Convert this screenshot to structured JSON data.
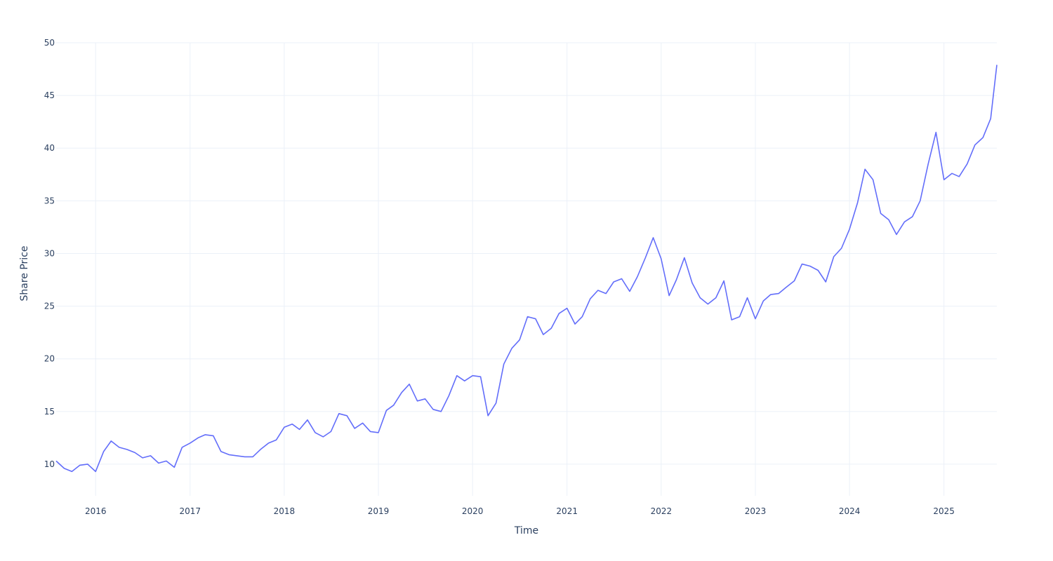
{
  "chart_data": {
    "type": "line",
    "title": "",
    "xlabel": "Time",
    "ylabel": "Share Price",
    "ylim": [
      7,
      50
    ],
    "xlim": [
      "2015-08-01",
      "2025-07-25"
    ],
    "y_ticks": [
      10,
      15,
      20,
      25,
      30,
      35,
      40,
      45,
      50
    ],
    "x_ticks": [
      "2016",
      "2017",
      "2018",
      "2019",
      "2020",
      "2021",
      "2022",
      "2023",
      "2024",
      "2025"
    ],
    "grid": true,
    "line_color": "#636efa",
    "series": [
      {
        "x": [
          "2015-08-01",
          "2015-09-01",
          "2015-10-01",
          "2015-11-01",
          "2015-12-01",
          "2016-01-01",
          "2016-02-01",
          "2016-03-01",
          "2016-04-01",
          "2016-05-01",
          "2016-06-01",
          "2016-07-01",
          "2016-08-01",
          "2016-09-01",
          "2016-10-01",
          "2016-11-01",
          "2016-12-01",
          "2017-01-01",
          "2017-02-01",
          "2017-03-01",
          "2017-04-01",
          "2017-05-01",
          "2017-06-01",
          "2017-07-01",
          "2017-08-01",
          "2017-09-01",
          "2017-10-01",
          "2017-11-01",
          "2017-12-01",
          "2018-01-01",
          "2018-02-01",
          "2018-03-01",
          "2018-04-01",
          "2018-05-01",
          "2018-06-01",
          "2018-07-01",
          "2018-08-01",
          "2018-09-01",
          "2018-10-01",
          "2018-11-01",
          "2018-12-01",
          "2019-01-01",
          "2019-02-01",
          "2019-03-01",
          "2019-04-01",
          "2019-05-01",
          "2019-06-01",
          "2019-07-01",
          "2019-08-01",
          "2019-09-01",
          "2019-10-01",
          "2019-11-01",
          "2019-12-01",
          "2020-01-01",
          "2020-02-01",
          "2020-03-01",
          "2020-04-01",
          "2020-05-01",
          "2020-06-01",
          "2020-07-01",
          "2020-08-01",
          "2020-09-01",
          "2020-10-01",
          "2020-11-01",
          "2020-12-01",
          "2021-01-01",
          "2021-02-01",
          "2021-03-01",
          "2021-04-01",
          "2021-05-01",
          "2021-06-01",
          "2021-07-01",
          "2021-08-01",
          "2021-09-01",
          "2021-10-01",
          "2021-11-01",
          "2021-12-01",
          "2022-01-01",
          "2022-02-01",
          "2022-03-01",
          "2022-04-01",
          "2022-05-01",
          "2022-06-01",
          "2022-07-01",
          "2022-08-01",
          "2022-09-01",
          "2022-10-01",
          "2022-11-01",
          "2022-12-01",
          "2023-01-01",
          "2023-02-01",
          "2023-03-01",
          "2023-04-01",
          "2023-05-01",
          "2023-06-01",
          "2023-07-01",
          "2023-08-01",
          "2023-09-01",
          "2023-10-01",
          "2023-11-01",
          "2023-12-01",
          "2024-01-01",
          "2024-02-01",
          "2024-03-01",
          "2024-04-01",
          "2024-05-01",
          "2024-06-01",
          "2024-07-01",
          "2024-08-01",
          "2024-09-01",
          "2024-10-01",
          "2024-11-01",
          "2024-12-01",
          "2025-01-01",
          "2025-02-01",
          "2025-03-01",
          "2025-04-01",
          "2025-05-01",
          "2025-06-01",
          "2025-07-01",
          "2025-07-25"
        ],
        "y": [
          10.3,
          9.6,
          9.3,
          9.9,
          10.0,
          9.3,
          11.2,
          12.2,
          11.6,
          11.4,
          11.1,
          10.6,
          10.8,
          10.1,
          10.3,
          9.7,
          11.6,
          12.0,
          12.5,
          12.8,
          12.7,
          11.2,
          10.9,
          10.8,
          10.7,
          10.7,
          11.4,
          12.0,
          12.3,
          13.5,
          13.8,
          13.3,
          14.2,
          13.0,
          12.6,
          13.1,
          14.8,
          14.6,
          13.4,
          13.9,
          13.1,
          13.0,
          15.1,
          15.6,
          16.8,
          17.6,
          16.0,
          16.2,
          15.2,
          15.0,
          16.5,
          18.4,
          17.9,
          18.4,
          18.3,
          14.6,
          15.8,
          19.5,
          21.0,
          21.8,
          24.0,
          23.8,
          22.3,
          22.9,
          24.3,
          24.8,
          23.3,
          24.0,
          25.7,
          26.5,
          26.2,
          27.3,
          27.6,
          26.4,
          27.8,
          29.6,
          31.5,
          29.5,
          26.0,
          27.5,
          29.6,
          27.2,
          25.8,
          25.2,
          25.8,
          27.4,
          23.7,
          24.0,
          25.8,
          23.8,
          25.5,
          26.1,
          26.2,
          26.8,
          27.4,
          29.0,
          28.8,
          28.4,
          27.3,
          29.7,
          30.5,
          32.3,
          34.8,
          38.0,
          37.0,
          33.8,
          33.2,
          31.8,
          33.0,
          33.5,
          35.0,
          38.5,
          41.5,
          37.0,
          37.6,
          37.3,
          38.5,
          40.3,
          41.0,
          42.8,
          47.9
        ]
      }
    ]
  }
}
